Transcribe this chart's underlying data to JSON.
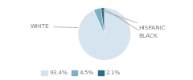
{
  "labels": [
    "WHITE",
    "HISPANIC",
    "BLACK"
  ],
  "values": [
    93.4,
    4.5,
    2.1
  ],
  "colors": [
    "#d6e4ef",
    "#7aafc4",
    "#2e6a8a"
  ],
  "legend_labels": [
    "93.4%",
    "4.5%",
    "2.1%"
  ],
  "startangle": 90,
  "label_fontsize": 5.2,
  "legend_fontsize": 5.2,
  "text_color": "#777777"
}
